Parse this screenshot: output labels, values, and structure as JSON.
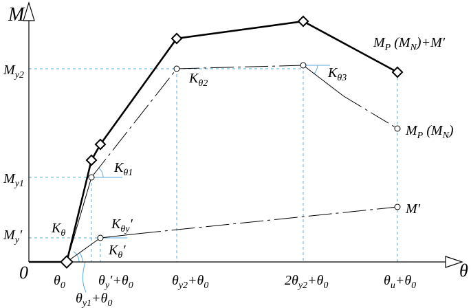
{
  "axes": {
    "y": "M",
    "x": "θ",
    "origin": "0"
  },
  "labels": [
    {
      "parts": [
        {
          "text": "M"
        },
        {
          "sub": "y2"
        }
      ]
    },
    {
      "parts": [
        {
          "text": "M"
        },
        {
          "sub": "y1"
        }
      ]
    },
    {
      "parts": [
        {
          "text": "M"
        },
        {
          "sub": "y"
        },
        {
          "text": "′"
        }
      ]
    },
    {
      "parts": [
        {
          "text": "θ"
        },
        {
          "sub": "0"
        }
      ]
    },
    {
      "parts": [
        {
          "text": "θ"
        },
        {
          "sub": "y"
        },
        {
          "text": "′+θ"
        },
        {
          "sub": "0"
        }
      ]
    },
    {
      "parts": [
        {
          "text": "θ"
        },
        {
          "sub": "y2"
        },
        {
          "text": "+θ"
        },
        {
          "sub": "0"
        }
      ]
    },
    {
      "parts": [
        {
          "text": "2θ"
        },
        {
          "sub": "y2"
        },
        {
          "text": "+θ"
        },
        {
          "sub": "0"
        }
      ]
    },
    {
      "parts": [
        {
          "text": "θ"
        },
        {
          "sub": "u"
        },
        {
          "text": "+θ"
        },
        {
          "sub": "0"
        }
      ]
    },
    {
      "parts": [
        {
          "text": "θ"
        },
        {
          "sub": "y1"
        },
        {
          "text": "+θ"
        },
        {
          "sub": "0"
        }
      ]
    },
    {
      "parts": [
        {
          "text": "M"
        },
        {
          "sub": "P"
        },
        {
          "text": " (M"
        },
        {
          "sub": "N"
        },
        {
          "text": ")+M′"
        }
      ]
    },
    {
      "parts": [
        {
          "text": "M"
        },
        {
          "sub": "P"
        },
        {
          "text": " (M"
        },
        {
          "sub": "N"
        },
        {
          "text": ")"
        }
      ]
    },
    {
      "parts": [
        {
          "text": "M′"
        }
      ]
    },
    {
      "parts": [
        {
          "text": "K"
        },
        {
          "sub": "θ2"
        }
      ]
    },
    {
      "parts": [
        {
          "text": "K"
        },
        {
          "sub": "θ3"
        }
      ]
    },
    {
      "parts": [
        {
          "text": "K"
        },
        {
          "sub": "θ1"
        }
      ]
    },
    {
      "parts": [
        {
          "text": "K"
        },
        {
          "sub": "θ"
        }
      ]
    },
    {
      "parts": [
        {
          "text": "K"
        },
        {
          "sub": "θy"
        },
        {
          "text": "′"
        }
      ]
    },
    {
      "parts": [
        {
          "text": "K"
        },
        {
          "sub": "θ"
        },
        {
          "text": "′"
        }
      ]
    }
  ]
}
